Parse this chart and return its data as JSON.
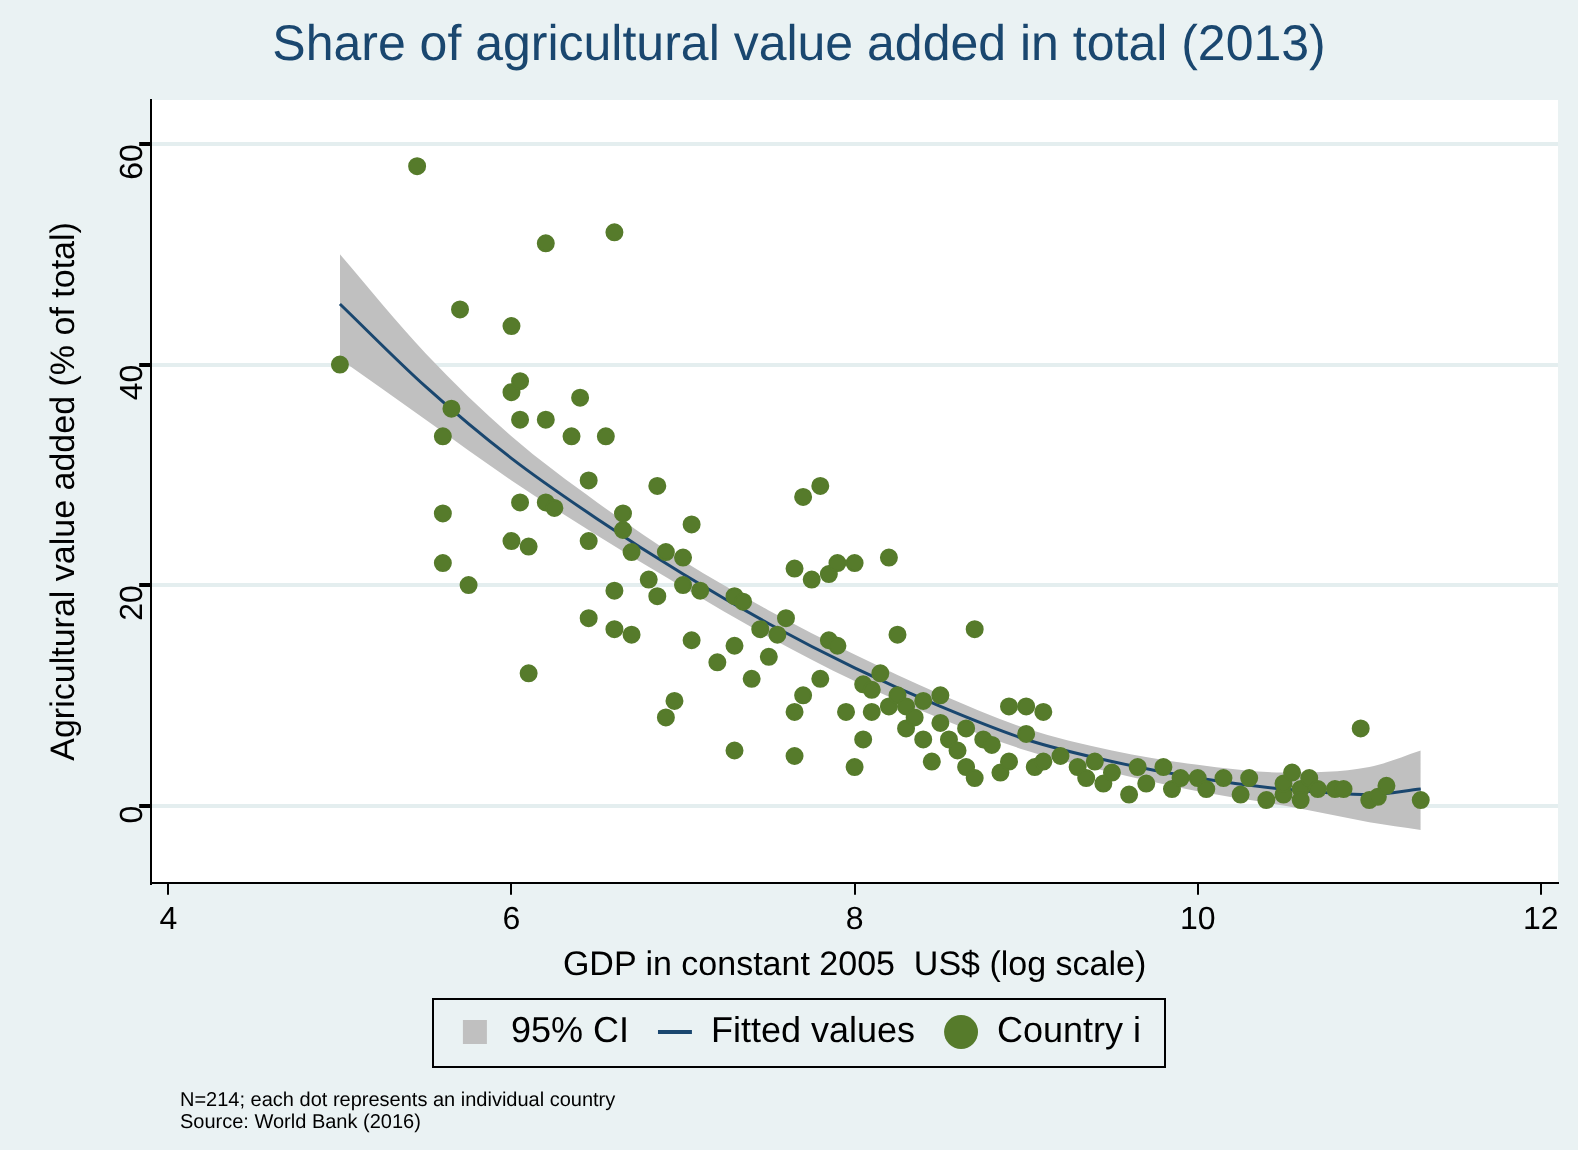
{
  "chart_data": {
    "type": "scatter",
    "title": "Share of agricultural value added in total (2013)",
    "xlabel": "GDP in constant 2005  US$ (log scale)",
    "ylabel": "Agricultural value added (% of total)",
    "xlim": [
      3.9,
      12.1
    ],
    "xticks": [
      4,
      6,
      8,
      10,
      12
    ],
    "ylim": [
      -7,
      64
    ],
    "yticks": [
      0,
      20,
      40,
      60
    ],
    "grid": "y",
    "legend": "bottom",
    "marker": "circle",
    "annotations": [
      "N=214; each dot represents an individual country",
      "Source: World Bank (2016)"
    ],
    "series": [
      {
        "name": "95% CI",
        "type": "area",
        "color": "#c0c0c0"
      },
      {
        "name": "Fitted values",
        "type": "line",
        "color": "#1a476f",
        "marker": "none",
        "x": [
          5.0,
          5.5,
          6.0,
          6.5,
          7.0,
          7.5,
          8.0,
          8.5,
          9.0,
          9.5,
          10.0,
          10.5,
          11.0,
          11.3
        ],
        "values": [
          45.5,
          38,
          31.5,
          26,
          21,
          16.5,
          12.5,
          9,
          6,
          4,
          2.5,
          1.5,
          1,
          1.5
        ],
        "lower": [
          40.5,
          35,
          29.5,
          24.5,
          19.8,
          15.3,
          11.3,
          7.9,
          5,
          3,
          1.3,
          0,
          -1.5,
          -2.2
        ],
        "upper": [
          50,
          41,
          33.5,
          27.5,
          22.2,
          17.7,
          13.7,
          10.1,
          7,
          5,
          3.7,
          3,
          3.5,
          5
        ]
      },
      {
        "name": "Country i",
        "color": "#567b2b",
        "x": [
          5.0,
          5.45,
          5.6,
          5.6,
          5.6,
          5.65,
          5.7,
          5.75,
          6.0,
          6.0,
          6.05,
          6.05,
          6.0,
          6.05,
          6.1,
          6.1,
          6.2,
          6.2,
          6.2,
          6.25,
          6.35,
          6.4,
          6.45,
          6.45,
          6.45,
          6.55,
          6.6,
          6.6,
          6.6,
          6.65,
          6.65,
          6.7,
          6.7,
          6.8,
          6.85,
          6.85,
          6.9,
          6.9,
          6.95,
          7.0,
          7.0,
          7.05,
          7.05,
          7.1,
          7.2,
          7.3,
          7.3,
          7.3,
          7.35,
          7.4,
          7.45,
          7.5,
          7.55,
          7.6,
          7.65,
          7.65,
          7.65,
          7.7,
          7.7,
          7.75,
          7.8,
          7.8,
          7.85,
          7.85,
          7.9,
          7.9,
          7.95,
          8.0,
          8.0,
          8.05,
          8.05,
          8.1,
          8.1,
          8.15,
          8.2,
          8.2,
          8.25,
          8.25,
          8.3,
          8.3,
          8.35,
          8.4,
          8.4,
          8.45,
          8.5,
          8.5,
          8.55,
          8.6,
          8.65,
          8.65,
          8.7,
          8.7,
          8.75,
          8.8,
          8.85,
          8.9,
          8.9,
          9.0,
          9.0,
          9.05,
          9.1,
          9.1,
          9.2,
          9.3,
          9.35,
          9.4,
          9.45,
          9.5,
          9.6,
          9.65,
          9.7,
          9.8,
          9.85,
          9.9,
          10.0,
          10.05,
          10.15,
          10.25,
          10.3,
          10.4,
          10.5,
          10.5,
          10.55,
          10.6,
          10.6,
          10.65,
          10.7,
          10.8,
          10.85,
          10.95,
          11.0,
          11.05,
          11.1,
          11.3
        ],
        "values": [
          40,
          58,
          33.5,
          26.5,
          22,
          36,
          45,
          20,
          43.5,
          37.5,
          38.5,
          35,
          24,
          27.5,
          23.5,
          12,
          51,
          35,
          27.5,
          27,
          33.5,
          37,
          29.5,
          24,
          17,
          33.5,
          52,
          16,
          19.5,
          26.5,
          25,
          23,
          15.5,
          20.5,
          29,
          19,
          23,
          8,
          9.5,
          22.5,
          20,
          25.5,
          15,
          19.5,
          13,
          19,
          14.5,
          5,
          18.5,
          11.5,
          16,
          13.5,
          15.5,
          17,
          21.5,
          8.5,
          4.5,
          28,
          10,
          20.5,
          29,
          11.5,
          21,
          15,
          22,
          14.5,
          8.5,
          22,
          3.5,
          11,
          6,
          10.5,
          8.5,
          12,
          22.5,
          9,
          15.5,
          10,
          9,
          7,
          8,
          6,
          9.5,
          4,
          10,
          7.5,
          6,
          5,
          3.5,
          7,
          16,
          2.5,
          6,
          5.5,
          3,
          9,
          4,
          9,
          6.5,
          3.5,
          8.5,
          4,
          4.5,
          3.5,
          2.5,
          4,
          2,
          3,
          1,
          3.5,
          2,
          3.5,
          1.5,
          2.5,
          2.5,
          1.5,
          2.5,
          1,
          2.5,
          0.5,
          1,
          2,
          3,
          1.5,
          0.5,
          2.5,
          1.5,
          1.5,
          1.5,
          7,
          0.5,
          0.8,
          1.8,
          0.5
        ]
      }
    ]
  }
}
